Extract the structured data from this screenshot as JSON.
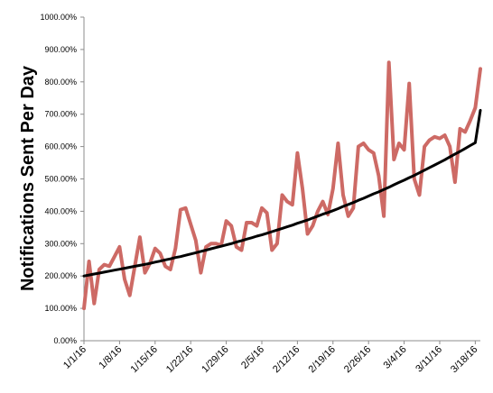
{
  "chart_data": {
    "type": "line",
    "title": "",
    "xlabel": "",
    "ylabel": "Notifications Sent Per Day",
    "ylim": [
      0,
      1000
    ],
    "y_ticks": [
      "0.00%",
      "100.00%",
      "200.00%",
      "300.00%",
      "400.00%",
      "500.00%",
      "600.00%",
      "700.00%",
      "800.00%",
      "900.00%",
      "1000.00%"
    ],
    "x_start": "1/1/16",
    "x_ticks": [
      "1/1/16",
      "1/8/16",
      "1/15/16",
      "1/22/16",
      "1/29/16",
      "2/5/16",
      "2/12/16",
      "2/19/16",
      "2/26/16",
      "3/4/16",
      "3/11/16",
      "3/18/16"
    ],
    "grid": false,
    "series": [
      {
        "color": "#cd6a65",
        "values": [
          100,
          245,
          115,
          220,
          235,
          230,
          260,
          290,
          190,
          140,
          230,
          320,
          210,
          240,
          285,
          270,
          230,
          220,
          285,
          405,
          410,
          360,
          310,
          210,
          290,
          300,
          300,
          295,
          370,
          355,
          290,
          280,
          365,
          365,
          355,
          410,
          395,
          280,
          300,
          450,
          430,
          420,
          580,
          470,
          330,
          355,
          400,
          430,
          390,
          470,
          610,
          450,
          385,
          410,
          600,
          610,
          590,
          580,
          510,
          385,
          860,
          560,
          610,
          590,
          795,
          500,
          450,
          600,
          620,
          630,
          625,
          635,
          600,
          490,
          655,
          645,
          680,
          720,
          840
        ]
      },
      {
        "color": "#000000",
        "values": [
          200,
          203,
          206,
          209,
          212,
          215,
          218,
          221,
          224,
          227,
          230,
          233,
          236,
          239,
          243,
          246,
          250,
          253,
          257,
          260,
          264,
          268,
          272,
          276,
          280,
          284,
          288,
          292,
          296,
          300,
          305,
          309,
          314,
          318,
          323,
          327,
          332,
          337,
          342,
          347,
          352,
          357,
          363,
          368,
          373,
          379,
          385,
          391,
          396,
          402,
          408,
          415,
          421,
          427,
          434,
          440,
          447,
          454,
          460,
          467,
          474,
          482,
          489,
          496,
          504,
          511,
          519,
          527,
          535,
          543,
          551,
          559,
          568,
          577,
          585,
          594,
          603,
          612,
          712
        ]
      }
    ]
  }
}
